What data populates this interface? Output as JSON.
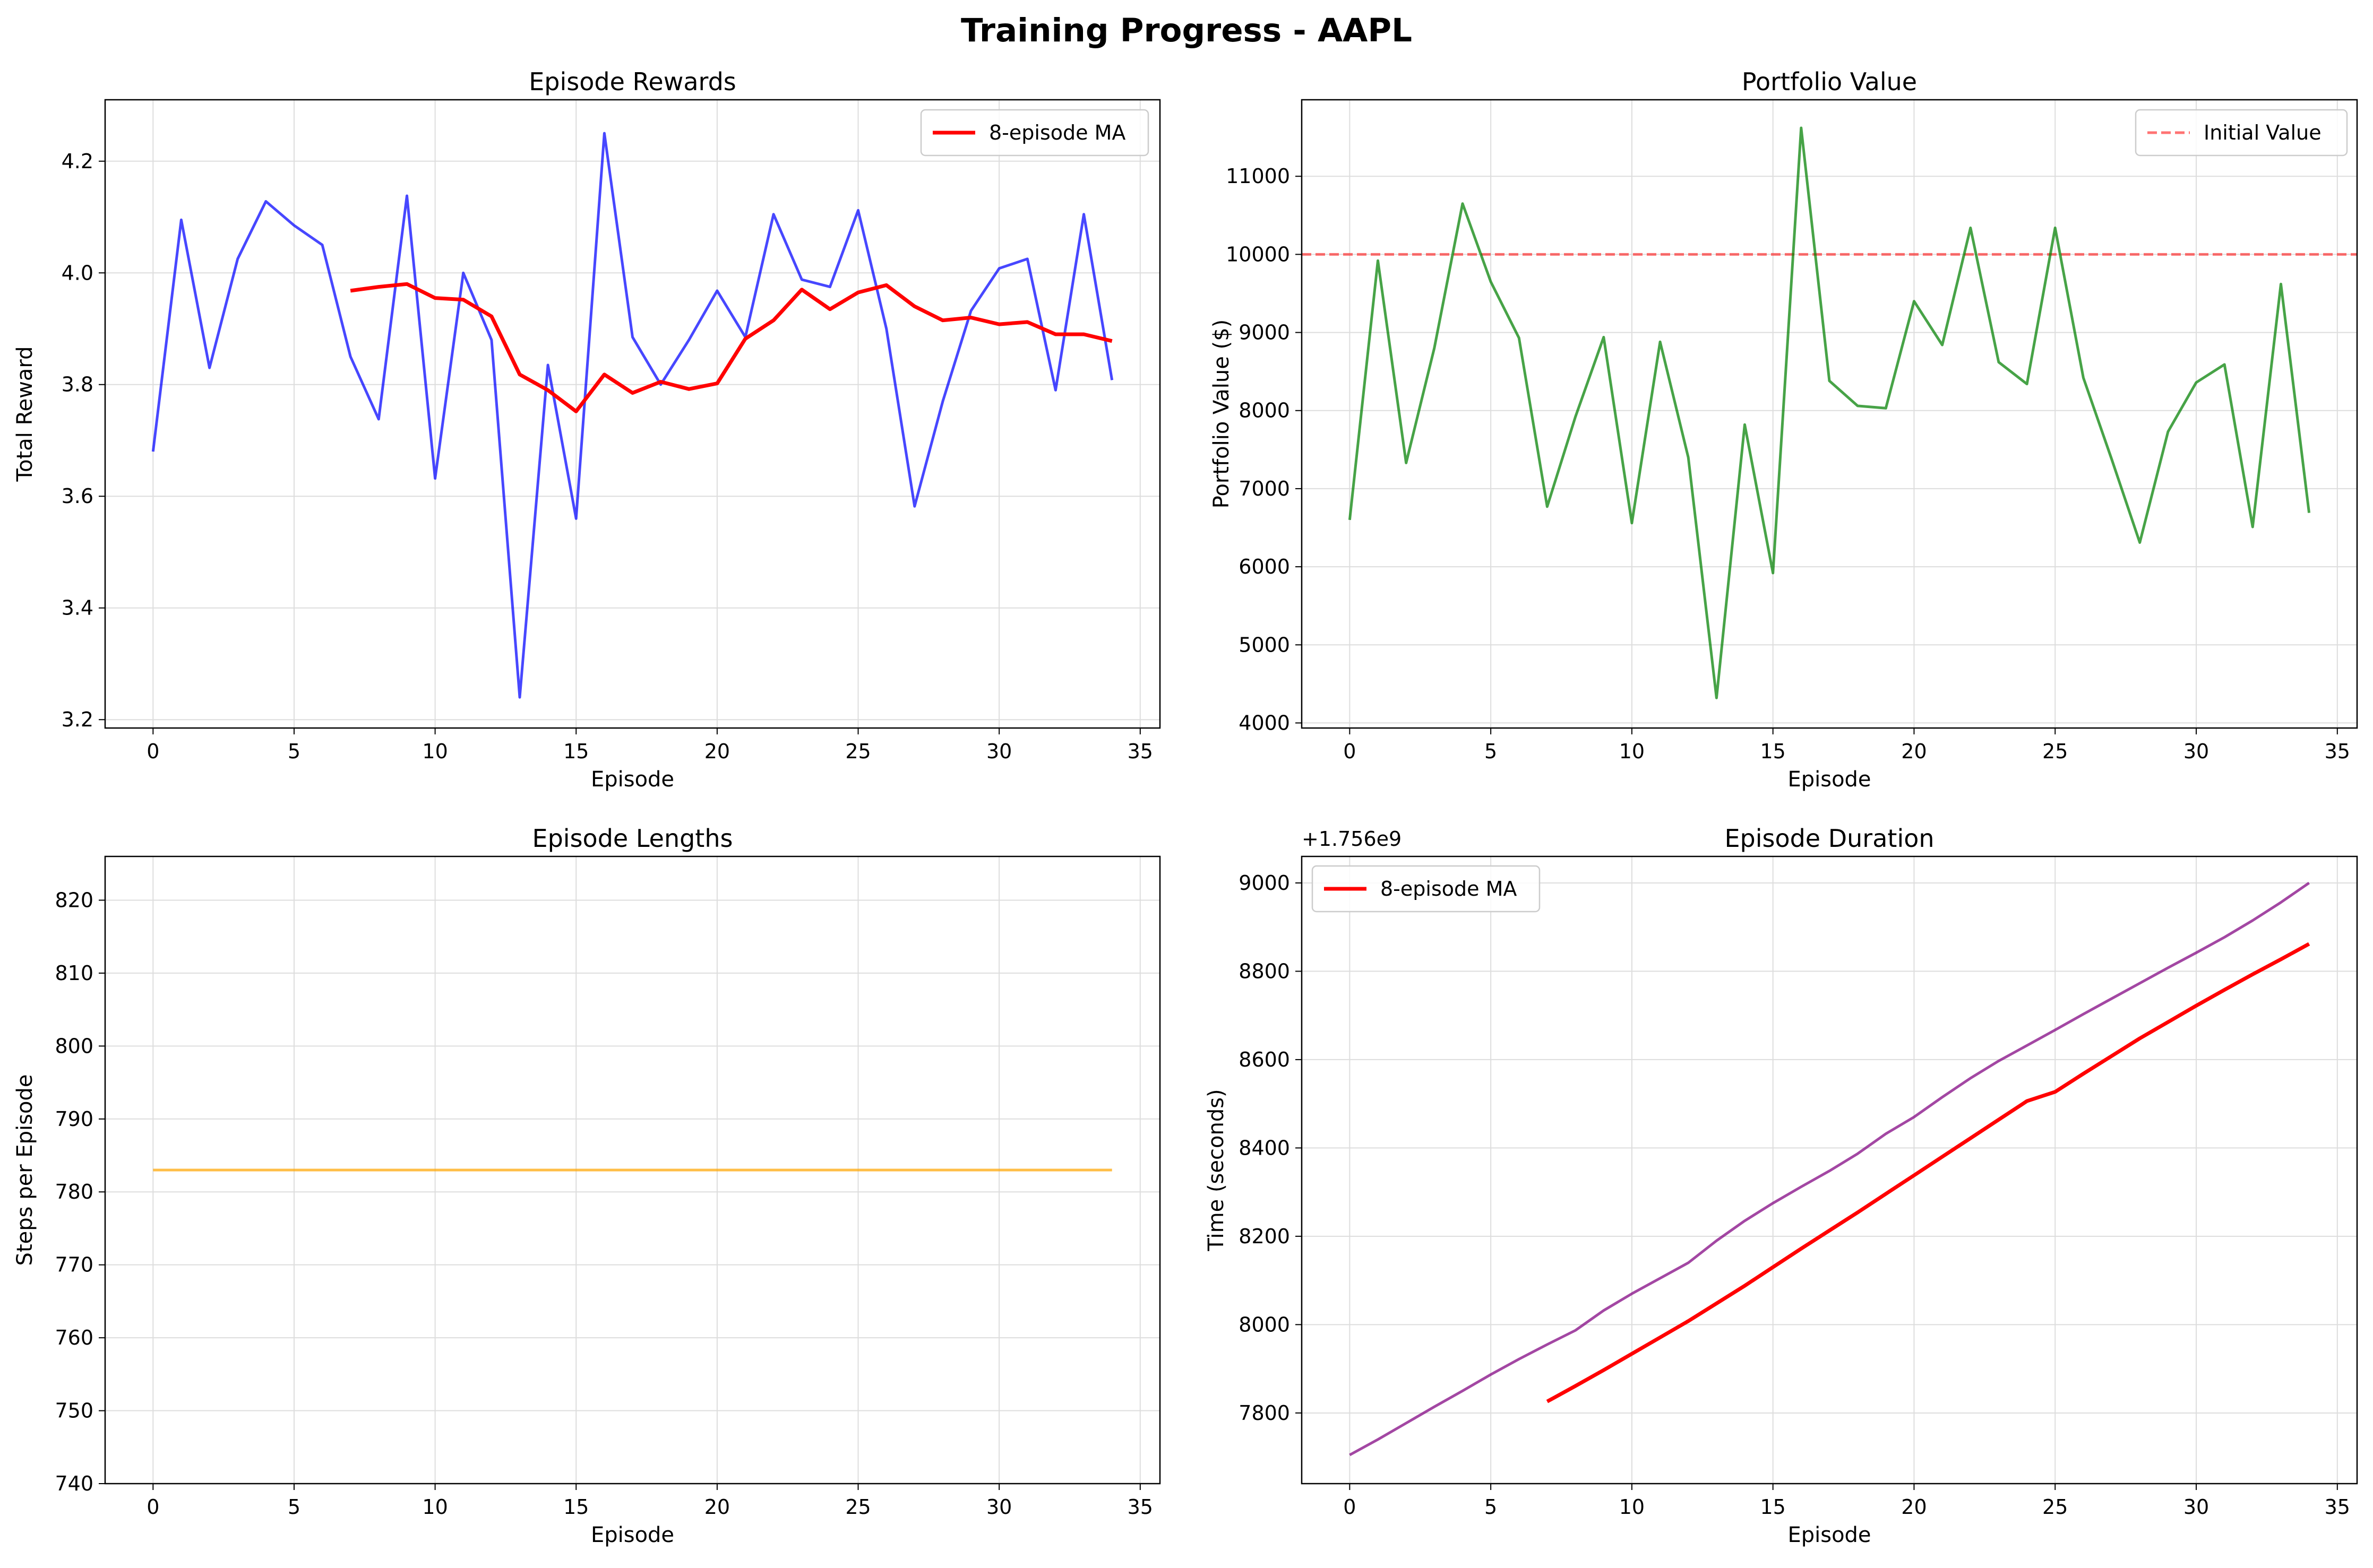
{
  "suptitle": "Training Progress - AAPL",
  "colors": {
    "rewards": "#0000ff",
    "ma": "#ff0000",
    "portfolio": "#008000",
    "initial": "#ff0000",
    "lengths": "#ffa500",
    "duration": "#800080",
    "grid": "#dddddd"
  },
  "chart_data": [
    {
      "type": "line",
      "title": "Episode Rewards",
      "xlabel": "Episode",
      "ylabel": "Total Reward",
      "xlim": [
        -1.7,
        35.7
      ],
      "ylim": [
        3.185,
        4.31
      ],
      "xticks": [
        0,
        5,
        10,
        15,
        20,
        25,
        30,
        35
      ],
      "xtick_labels": [
        "0",
        "5",
        "10",
        "15",
        "20",
        "25",
        "30",
        "35"
      ],
      "yticks": [
        3.2,
        3.4,
        3.6,
        3.8,
        4.0,
        4.2
      ],
      "ytick_labels": [
        "3.2",
        "3.4",
        "3.6",
        "3.8",
        "4.0",
        "4.2"
      ],
      "grid": true,
      "legend": "top-right",
      "series": [
        {
          "color_key": "rewards",
          "x": [
            0,
            1,
            2,
            3,
            4,
            5,
            6,
            7,
            8,
            9,
            10,
            11,
            12,
            13,
            14,
            15,
            16,
            17,
            18,
            19,
            20,
            21,
            22,
            23,
            24,
            25,
            26,
            27,
            28,
            29,
            30,
            31,
            32,
            33,
            34
          ],
          "values": [
            3.68,
            4.095,
            3.83,
            4.025,
            4.128,
            4.085,
            4.05,
            3.85,
            3.738,
            4.138,
            3.632,
            4.0,
            3.88,
            3.24,
            3.835,
            3.56,
            4.25,
            3.885,
            3.8,
            3.88,
            3.968,
            3.885,
            4.105,
            3.988,
            3.975,
            4.112,
            3.9,
            3.582,
            3.77,
            3.932,
            4.008,
            4.025,
            3.79,
            4.105,
            3.808
          ]
        },
        {
          "name": "8-episode MA",
          "color_key": "ma",
          "x": [
            7,
            8,
            9,
            10,
            11,
            12,
            13,
            14,
            15,
            16,
            17,
            18,
            19,
            20,
            21,
            22,
            23,
            24,
            25,
            26,
            27,
            28,
            29,
            30,
            31,
            32,
            33,
            34
          ],
          "values": [
            3.968,
            3.975,
            3.98,
            3.955,
            3.952,
            3.922,
            3.818,
            3.79,
            3.752,
            3.818,
            3.785,
            3.805,
            3.792,
            3.802,
            3.882,
            3.915,
            3.97,
            3.935,
            3.965,
            3.978,
            3.94,
            3.915,
            3.92,
            3.908,
            3.912,
            3.89,
            3.89,
            3.878
          ]
        }
      ]
    },
    {
      "type": "line",
      "title": "Portfolio Value",
      "xlabel": "Episode",
      "ylabel": "Portfolio Value ($)",
      "xlim": [
        -1.7,
        35.7
      ],
      "ylim": [
        3935,
        11980
      ],
      "xticks": [
        0,
        5,
        10,
        15,
        20,
        25,
        30,
        35
      ],
      "xtick_labels": [
        "0",
        "5",
        "10",
        "15",
        "20",
        "25",
        "30",
        "35"
      ],
      "yticks": [
        4000,
        5000,
        6000,
        7000,
        8000,
        9000,
        10000,
        11000
      ],
      "ytick_labels": [
        "4000",
        "5000",
        "6000",
        "7000",
        "8000",
        "9000",
        "10000",
        "11000"
      ],
      "grid": true,
      "legend": "top-right",
      "hline": {
        "name": "Initial Value",
        "value": 10000,
        "color_key": "initial"
      },
      "series": [
        {
          "color_key": "portfolio",
          "x": [
            0,
            1,
            2,
            3,
            4,
            5,
            6,
            7,
            8,
            9,
            10,
            11,
            12,
            13,
            14,
            15,
            16,
            17,
            18,
            19,
            20,
            21,
            22,
            23,
            24,
            25,
            26,
            27,
            28,
            29,
            30,
            31,
            32,
            33,
            34
          ],
          "values": [
            6600,
            9920,
            7330,
            8800,
            10650,
            9650,
            8930,
            6770,
            7920,
            8940,
            6560,
            8880,
            7400,
            4320,
            7820,
            5920,
            11620,
            8380,
            8060,
            8030,
            9400,
            8840,
            10340,
            8620,
            8340,
            10340,
            8420,
            7380,
            6310,
            7730,
            8360,
            8590,
            6510,
            9620,
            6690
          ]
        }
      ]
    },
    {
      "type": "line",
      "title": "Episode Lengths",
      "xlabel": "Episode",
      "ylabel": "Steps per Episode",
      "xlim": [
        -1.7,
        35.7
      ],
      "ylim": [
        740,
        826
      ],
      "xticks": [
        0,
        5,
        10,
        15,
        20,
        25,
        30,
        35
      ],
      "xtick_labels": [
        "0",
        "5",
        "10",
        "15",
        "20",
        "25",
        "30",
        "35"
      ],
      "yticks": [
        740,
        750,
        760,
        770,
        780,
        790,
        800,
        810,
        820
      ],
      "ytick_labels": [
        "740",
        "750",
        "760",
        "770",
        "780",
        "790",
        "800",
        "810",
        "820"
      ],
      "grid": true,
      "series": [
        {
          "color_key": "lengths",
          "x": [
            0,
            34
          ],
          "values": [
            783,
            783
          ]
        }
      ]
    },
    {
      "type": "line",
      "title": "Episode Duration",
      "xlabel": "Episode",
      "ylabel": "Time (seconds)",
      "offset_text": "+1.756e9",
      "xlim": [
        -1.7,
        35.7
      ],
      "ylim": [
        7640,
        9060
      ],
      "xticks": [
        0,
        5,
        10,
        15,
        20,
        25,
        30,
        35
      ],
      "xtick_labels": [
        "0",
        "5",
        "10",
        "15",
        "20",
        "25",
        "30",
        "35"
      ],
      "yticks": [
        7800,
        8000,
        8200,
        8400,
        8600,
        8800,
        9000
      ],
      "ytick_labels": [
        "7800",
        "8000",
        "8200",
        "8400",
        "8600",
        "8800",
        "9000"
      ],
      "grid": true,
      "legend": "top-left",
      "series": [
        {
          "color_key": "duration",
          "x": [
            0,
            1,
            2,
            3,
            4,
            5,
            6,
            7,
            8,
            9,
            10,
            11,
            12,
            13,
            14,
            15,
            16,
            17,
            18,
            19,
            20,
            21,
            22,
            23,
            24,
            25,
            26,
            27,
            28,
            29,
            30,
            31,
            32,
            33,
            34
          ],
          "values": [
            7705,
            7740,
            7777,
            7814,
            7850,
            7887,
            7922,
            7955,
            7987,
            8032,
            8070,
            8105,
            8140,
            8190,
            8235,
            8275,
            8312,
            8348,
            8387,
            8432,
            8470,
            8515,
            8558,
            8597,
            8632,
            8667,
            8703,
            8738,
            8773,
            8808,
            8842,
            8877,
            8915,
            8956,
            9000
          ]
        },
        {
          "name": "8-episode MA",
          "color_key": "ma",
          "x": [
            7,
            8,
            9,
            10,
            11,
            12,
            13,
            14,
            15,
            16,
            17,
            18,
            19,
            20,
            21,
            22,
            23,
            24,
            25,
            26,
            27,
            28,
            29,
            30,
            31,
            32,
            33,
            34
          ],
          "values": [
            7826,
            7861,
            7897,
            7934,
            7971,
            8008,
            8048,
            8088,
            8130,
            8172,
            8213,
            8254,
            8296,
            8338,
            8380,
            8422,
            8464,
            8506,
            8527,
            8568,
            8608,
            8648,
            8685,
            8722,
            8758,
            8793,
            8827,
            8862
          ]
        }
      ]
    }
  ]
}
